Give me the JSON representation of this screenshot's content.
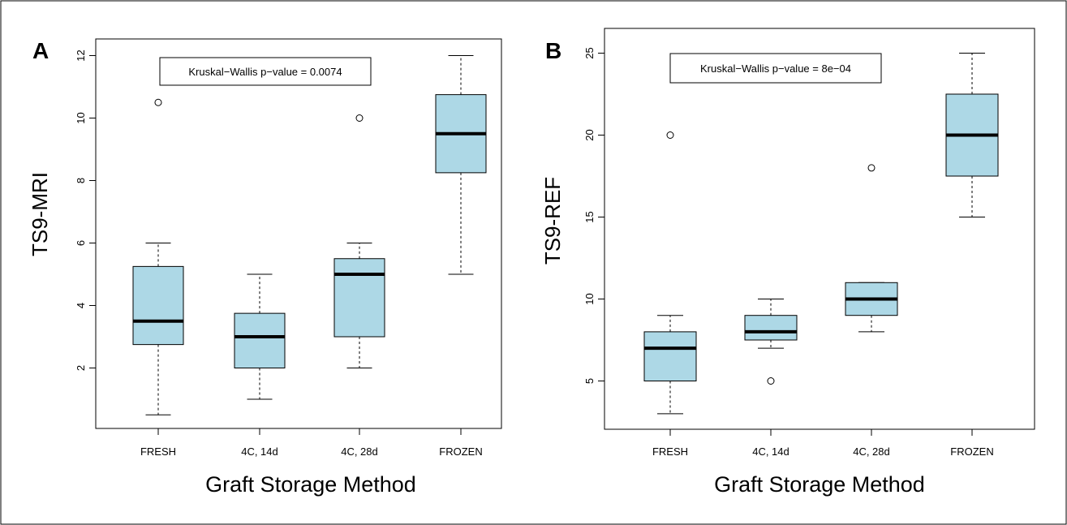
{
  "figure": {
    "border_color": "#000000",
    "box_fill": "#add8e6",
    "box_stroke": "#000000"
  },
  "chart_data": [
    {
      "type": "box",
      "panel_label": "A",
      "title": "",
      "xlabel": "Graft Storage Method",
      "ylabel": "TS9-MRI",
      "annotation": "Kruskal−Wallis p−value = 0.0074",
      "categories": [
        "FRESH",
        "4C, 14d",
        "4C, 28d",
        "FROZEN"
      ],
      "ylim": [
        0,
        12.5
      ],
      "yticks": [
        2,
        4,
        6,
        8,
        10,
        12
      ],
      "ytick_labels": [
        "2",
        "4",
        "6",
        "8",
        "10",
        "12"
      ],
      "boxes": [
        {
          "min": 0.5,
          "q1": 2.75,
          "median": 3.5,
          "q3": 5.25,
          "max": 6,
          "outliers": [
            10.5
          ]
        },
        {
          "min": 1,
          "q1": 2,
          "median": 3,
          "q3": 3.75,
          "max": 5,
          "outliers": []
        },
        {
          "min": 2,
          "q1": 3,
          "median": 5,
          "q3": 5.5,
          "max": 6,
          "outliers": [
            10
          ]
        },
        {
          "min": 5,
          "q1": 8.25,
          "median": 9.5,
          "q3": 10.75,
          "max": 12,
          "outliers": []
        }
      ]
    },
    {
      "type": "box",
      "panel_label": "B",
      "title": "",
      "xlabel": "Graft Storage Method",
      "ylabel": "TS9-REF",
      "annotation": "Kruskal−Wallis p−value = 8e−04",
      "categories": [
        "FRESH",
        "4C, 14d",
        "4C, 28d",
        "FROZEN"
      ],
      "ylim": [
        2,
        26
      ],
      "yticks": [
        5,
        10,
        15,
        20,
        25
      ],
      "ytick_labels": [
        "5",
        "10",
        "15",
        "20",
        "25"
      ],
      "boxes": [
        {
          "min": 3,
          "q1": 5,
          "median": 7,
          "q3": 8,
          "max": 9,
          "outliers": [
            20
          ]
        },
        {
          "min": 7,
          "q1": 7.5,
          "median": 8,
          "q3": 9,
          "max": 10,
          "outliers": [
            5
          ]
        },
        {
          "min": 8,
          "q1": 9,
          "median": 10,
          "q3": 11,
          "max": 11,
          "outliers": [
            18
          ]
        },
        {
          "min": 15,
          "q1": 17.5,
          "median": 20,
          "q3": 22.5,
          "max": 25,
          "outliers": []
        }
      ]
    }
  ]
}
